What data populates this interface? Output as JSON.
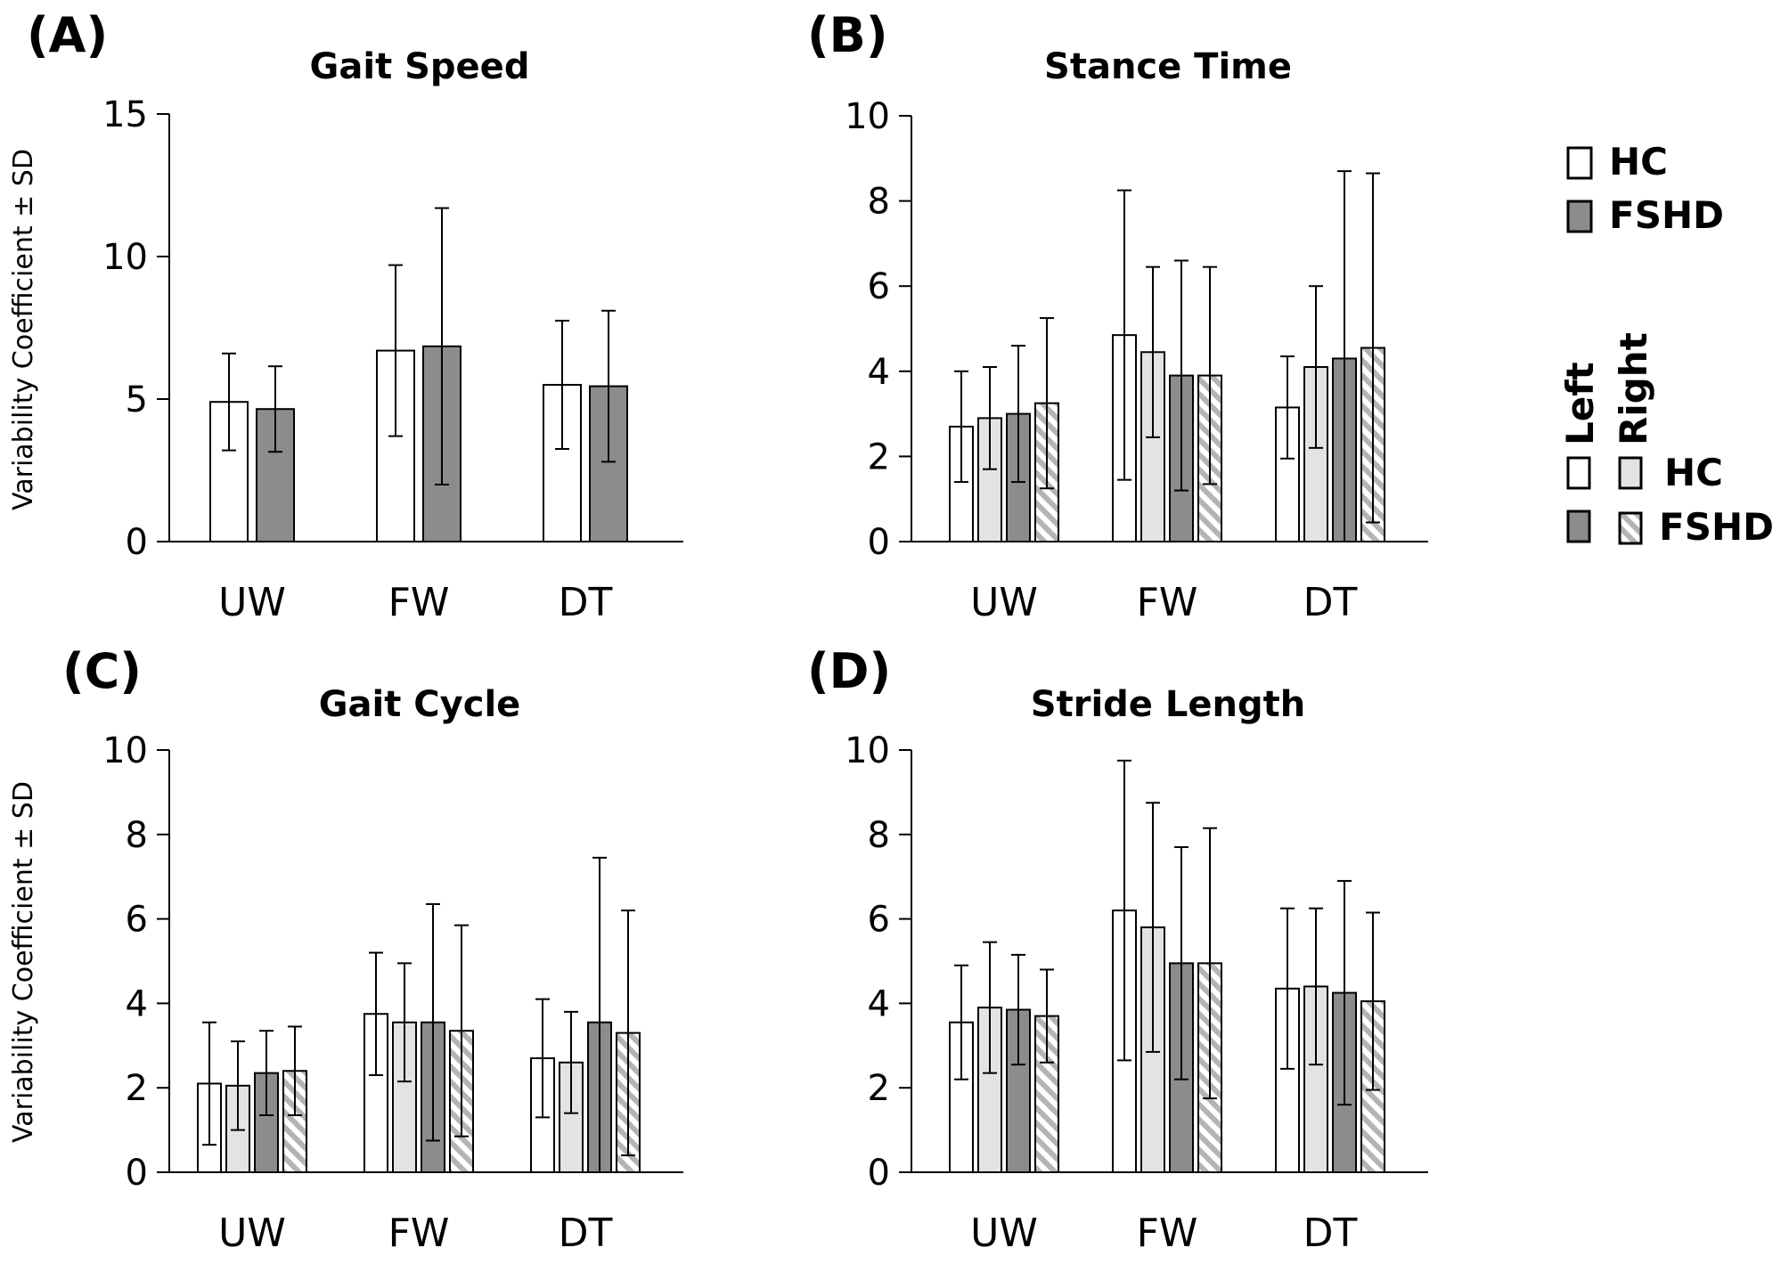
{
  "colors": {
    "hc_left": "#ffffff",
    "hc_right": "#e3e3e3",
    "fshd": "#8c8c8c",
    "fshd_right_hatch": "#bbbbbb",
    "axis": "#000000"
  },
  "legend_overall": {
    "hc": "HC",
    "fshd": "FSHD"
  },
  "legend_side": {
    "left": "Left",
    "right": "Right",
    "hc": "HC",
    "fshd": "FSHD"
  },
  "chart_data": [
    {
      "panel": "(A)",
      "title": "Gait Speed",
      "type": "bar",
      "ylabel": "Variability Coefficient ± SD",
      "categories": [
        "UW",
        "FW",
        "DT"
      ],
      "ylim": [
        0,
        15
      ],
      "yticks": [
        0,
        5,
        10,
        15
      ],
      "series": [
        {
          "name": "HC",
          "style": "hc_left",
          "values": [
            4.9,
            6.7,
            5.5
          ],
          "sd": [
            1.7,
            3.0,
            2.25
          ]
        },
        {
          "name": "FSHD",
          "style": "fshd",
          "values": [
            4.65,
            6.85,
            5.45
          ],
          "sd": [
            1.5,
            4.85,
            2.65
          ]
        }
      ]
    },
    {
      "panel": "(B)",
      "title": "Stance Time",
      "type": "bar",
      "ylabel": "",
      "categories": [
        "UW",
        "FW",
        "DT"
      ],
      "ylim": [
        0,
        10
      ],
      "yticks": [
        0,
        2,
        4,
        6,
        8,
        10
      ],
      "series": [
        {
          "name": "HC Left",
          "style": "hc_left",
          "values": [
            2.7,
            4.85,
            3.15
          ],
          "sd": [
            1.3,
            3.4,
            1.2
          ]
        },
        {
          "name": "HC Right",
          "style": "hc_right",
          "values": [
            2.9,
            4.45,
            4.1
          ],
          "sd": [
            1.2,
            2.0,
            1.9
          ]
        },
        {
          "name": "FSHD Left",
          "style": "fshd",
          "values": [
            3.0,
            3.9,
            4.3
          ],
          "sd": [
            1.6,
            2.7,
            4.4
          ]
        },
        {
          "name": "FSHD Right",
          "style": "fshd_right",
          "values": [
            3.25,
            3.9,
            4.55
          ],
          "sd": [
            2.0,
            2.55,
            4.1
          ]
        }
      ]
    },
    {
      "panel": "(C)",
      "title": "Gait Cycle",
      "type": "bar",
      "ylabel": "Variability Coefficient ± SD",
      "categories": [
        "UW",
        "FW",
        "DT"
      ],
      "ylim": [
        0,
        10
      ],
      "yticks": [
        0,
        2,
        4,
        6,
        8,
        10
      ],
      "series": [
        {
          "name": "HC Left",
          "style": "hc_left",
          "values": [
            2.1,
            3.75,
            2.7
          ],
          "sd": [
            1.45,
            1.45,
            1.4
          ]
        },
        {
          "name": "HC Right",
          "style": "hc_right",
          "values": [
            2.05,
            3.55,
            2.6
          ],
          "sd": [
            1.05,
            1.4,
            1.2
          ]
        },
        {
          "name": "FSHD Left",
          "style": "fshd",
          "values": [
            2.35,
            3.55,
            3.55
          ],
          "sd": [
            1.0,
            2.8,
            3.9
          ]
        },
        {
          "name": "FSHD Right",
          "style": "fshd_right",
          "values": [
            2.4,
            3.35,
            3.3
          ],
          "sd": [
            1.05,
            2.5,
            2.9
          ]
        }
      ]
    },
    {
      "panel": "(D)",
      "title": "Stride Length",
      "type": "bar",
      "ylabel": "",
      "categories": [
        "UW",
        "FW",
        "DT"
      ],
      "ylim": [
        0,
        10
      ],
      "yticks": [
        0,
        2,
        4,
        6,
        8,
        10
      ],
      "series": [
        {
          "name": "HC Left",
          "style": "hc_left",
          "values": [
            3.55,
            6.2,
            4.35
          ],
          "sd": [
            1.35,
            3.55,
            1.9
          ]
        },
        {
          "name": "HC Right",
          "style": "hc_right",
          "values": [
            3.9,
            5.8,
            4.4
          ],
          "sd": [
            1.55,
            2.95,
            1.85
          ]
        },
        {
          "name": "FSHD Left",
          "style": "fshd",
          "values": [
            3.85,
            4.95,
            4.25
          ],
          "sd": [
            1.3,
            2.75,
            2.65
          ]
        },
        {
          "name": "FSHD Right",
          "style": "fshd_right",
          "values": [
            3.7,
            4.95,
            4.05
          ],
          "sd": [
            1.1,
            3.2,
            2.1
          ]
        }
      ]
    }
  ]
}
